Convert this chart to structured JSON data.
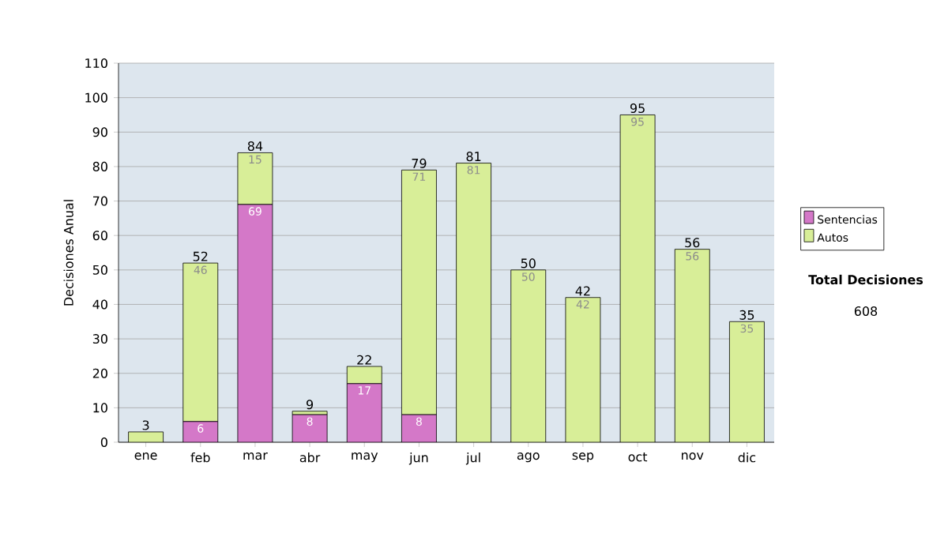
{
  "chart_data": {
    "type": "bar",
    "stacked": true,
    "ylabel": "Decisiones Anual",
    "categories": [
      "ene",
      "feb",
      "mar",
      "abr",
      "may",
      "jun",
      "jul",
      "ago",
      "sep",
      "oct",
      "nov",
      "dic"
    ],
    "series": [
      {
        "name": "Sentencias",
        "color": "#d478c8",
        "values": [
          0,
          6,
          69,
          8,
          17,
          8,
          0,
          0,
          0,
          0,
          0,
          0
        ],
        "value_labels": [
          null,
          "6",
          "69",
          "8",
          "17",
          "8",
          null,
          null,
          null,
          null,
          null,
          null
        ]
      },
      {
        "name": "Autos",
        "color": "#d8ee98",
        "values": [
          3,
          46,
          15,
          1,
          5,
          71,
          81,
          50,
          42,
          95,
          56,
          35
        ],
        "value_labels": [
          null,
          "46",
          "15",
          null,
          null,
          "71",
          "81",
          "50",
          "42",
          "95",
          "56",
          "35"
        ]
      }
    ],
    "totals": [
      "3",
      "52",
      "84",
      "9",
      "22",
      "79",
      "81",
      "50",
      "42",
      "95",
      "56",
      "35"
    ],
    "ylim": [
      0,
      110
    ],
    "yticks": [
      0,
      10,
      20,
      30,
      40,
      50,
      60,
      70,
      80,
      90,
      100,
      110
    ],
    "grid": "y",
    "legend": "right",
    "annotations": [
      "Total Decisiones",
      "608"
    ]
  }
}
